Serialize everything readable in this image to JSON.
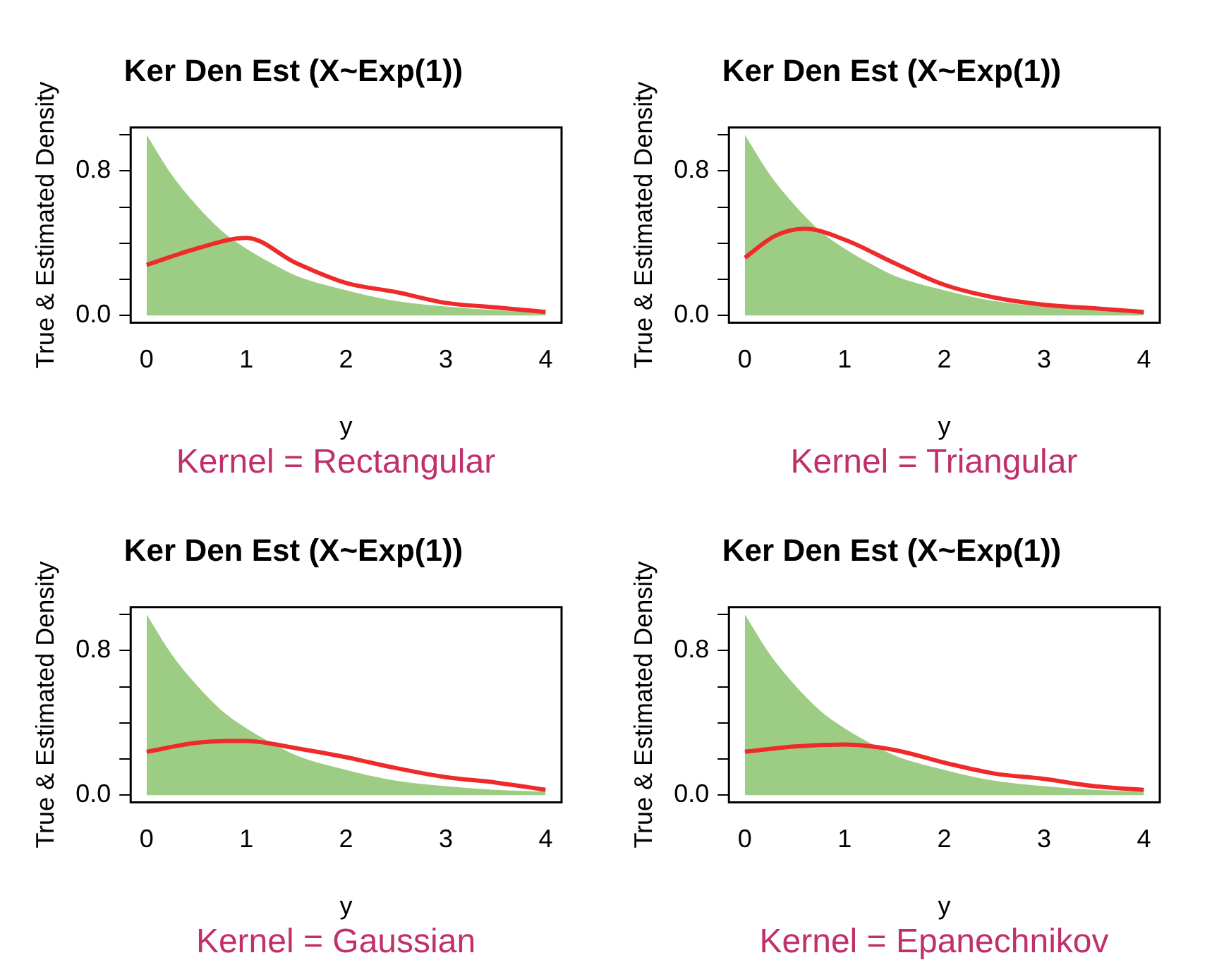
{
  "chart_data": [
    {
      "type": "line",
      "title": "Ker Den Est (X~Exp(1))",
      "xlabel": "y",
      "ylabel": "True & Estimated Density",
      "annotations": [
        "Kernel = Rectangular"
      ],
      "xlim": [
        -0.16,
        4.16
      ],
      "ylim": [
        -0.04,
        1.04
      ],
      "xticks": [
        0,
        1,
        2,
        3,
        4
      ],
      "yticks": [
        {
          "value": 0,
          "label": "0.0"
        },
        {
          "value": 0.2,
          "label": null
        },
        {
          "value": 0.4,
          "label": null
        },
        {
          "value": 0.6,
          "label": null
        },
        {
          "value": 0.8,
          "label": "0.8"
        },
        {
          "value": 1,
          "label": null
        }
      ],
      "grid": false,
      "legend": false,
      "marker": "none",
      "series": [
        {
          "type": "area",
          "color": "#9dcd84",
          "x": [
            0,
            0.25,
            0.5,
            0.75,
            1,
            1.25,
            1.5,
            2,
            2.5,
            3,
            3.5,
            4
          ],
          "values": [
            1,
            0.78,
            0.61,
            0.47,
            0.37,
            0.29,
            0.22,
            0.14,
            0.08,
            0.05,
            0.03,
            0.02
          ]
        },
        {
          "type": "line",
          "color": "#ee2a2b",
          "x": [
            0,
            0.5,
            1,
            1.5,
            2,
            2.5,
            3,
            3.5,
            4
          ],
          "values": [
            0.28,
            0.37,
            0.43,
            0.29,
            0.18,
            0.13,
            0.07,
            0.045,
            0.02
          ]
        }
      ]
    },
    {
      "type": "line",
      "title": "Ker Den Est (X~Exp(1))",
      "xlabel": "y",
      "ylabel": "True & Estimated Density",
      "annotations": [
        "Kernel = Triangular"
      ],
      "xlim": [
        -0.16,
        4.16
      ],
      "ylim": [
        -0.04,
        1.04
      ],
      "xticks": [
        0,
        1,
        2,
        3,
        4
      ],
      "yticks": [
        {
          "value": 0,
          "label": "0.0"
        },
        {
          "value": 0.2,
          "label": null
        },
        {
          "value": 0.4,
          "label": null
        },
        {
          "value": 0.6,
          "label": null
        },
        {
          "value": 0.8,
          "label": "0.8"
        },
        {
          "value": 1,
          "label": null
        }
      ],
      "grid": false,
      "legend": false,
      "marker": "none",
      "series": [
        {
          "type": "area",
          "color": "#9dcd84",
          "x": [
            0,
            0.25,
            0.5,
            0.75,
            1,
            1.25,
            1.5,
            2,
            2.5,
            3,
            3.5,
            4
          ],
          "values": [
            1,
            0.78,
            0.61,
            0.47,
            0.37,
            0.29,
            0.22,
            0.14,
            0.08,
            0.05,
            0.03,
            0.02
          ]
        },
        {
          "type": "line",
          "color": "#ee2a2b",
          "x": [
            0,
            0.3,
            0.6,
            1,
            1.5,
            2,
            2.5,
            3,
            3.5,
            4
          ],
          "values": [
            0.32,
            0.44,
            0.48,
            0.42,
            0.29,
            0.17,
            0.1,
            0.06,
            0.04,
            0.02
          ]
        }
      ]
    },
    {
      "type": "line",
      "title": "Ker Den Est (X~Exp(1))",
      "xlabel": "y",
      "ylabel": "True & Estimated Density",
      "annotations": [
        "Kernel = Gaussian"
      ],
      "xlim": [
        -0.16,
        4.16
      ],
      "ylim": [
        -0.04,
        1.04
      ],
      "xticks": [
        0,
        1,
        2,
        3,
        4
      ],
      "yticks": [
        {
          "value": 0,
          "label": "0.0"
        },
        {
          "value": 0.2,
          "label": null
        },
        {
          "value": 0.4,
          "label": null
        },
        {
          "value": 0.6,
          "label": null
        },
        {
          "value": 0.8,
          "label": "0.8"
        },
        {
          "value": 1,
          "label": null
        }
      ],
      "grid": false,
      "legend": false,
      "marker": "none",
      "series": [
        {
          "type": "area",
          "color": "#9dcd84",
          "x": [
            0,
            0.25,
            0.5,
            0.75,
            1,
            1.25,
            1.5,
            2,
            2.5,
            3,
            3.5,
            4
          ],
          "values": [
            1,
            0.78,
            0.61,
            0.47,
            0.37,
            0.29,
            0.22,
            0.14,
            0.08,
            0.05,
            0.03,
            0.02
          ]
        },
        {
          "type": "line",
          "color": "#ee2a2b",
          "x": [
            0,
            0.5,
            0.8,
            1,
            1.5,
            2,
            2.5,
            3,
            3.5,
            4
          ],
          "values": [
            0.24,
            0.29,
            0.3,
            0.3,
            0.26,
            0.21,
            0.15,
            0.1,
            0.07,
            0.03
          ]
        }
      ]
    },
    {
      "type": "line",
      "title": "Ker Den Est (X~Exp(1))",
      "xlabel": "y",
      "ylabel": "True & Estimated Density",
      "annotations": [
        "Kernel = Epanechnikov"
      ],
      "xlim": [
        -0.16,
        4.16
      ],
      "ylim": [
        -0.04,
        1.04
      ],
      "xticks": [
        0,
        1,
        2,
        3,
        4
      ],
      "yticks": [
        {
          "value": 0,
          "label": "0.0"
        },
        {
          "value": 0.2,
          "label": null
        },
        {
          "value": 0.4,
          "label": null
        },
        {
          "value": 0.6,
          "label": null
        },
        {
          "value": 0.8,
          "label": "0.8"
        },
        {
          "value": 1,
          "label": null
        }
      ],
      "grid": false,
      "legend": false,
      "marker": "none",
      "series": [
        {
          "type": "area",
          "color": "#9dcd84",
          "x": [
            0,
            0.25,
            0.5,
            0.75,
            1,
            1.25,
            1.5,
            2,
            2.5,
            3,
            3.5,
            4
          ],
          "values": [
            1,
            0.78,
            0.61,
            0.47,
            0.37,
            0.29,
            0.22,
            0.14,
            0.08,
            0.05,
            0.03,
            0.02
          ]
        },
        {
          "type": "line",
          "color": "#ee2a2b",
          "x": [
            0,
            0.5,
            1,
            1.5,
            2,
            2.5,
            3,
            3.5,
            4
          ],
          "values": [
            0.24,
            0.27,
            0.28,
            0.25,
            0.18,
            0.12,
            0.09,
            0.05,
            0.03
          ]
        }
      ]
    }
  ]
}
